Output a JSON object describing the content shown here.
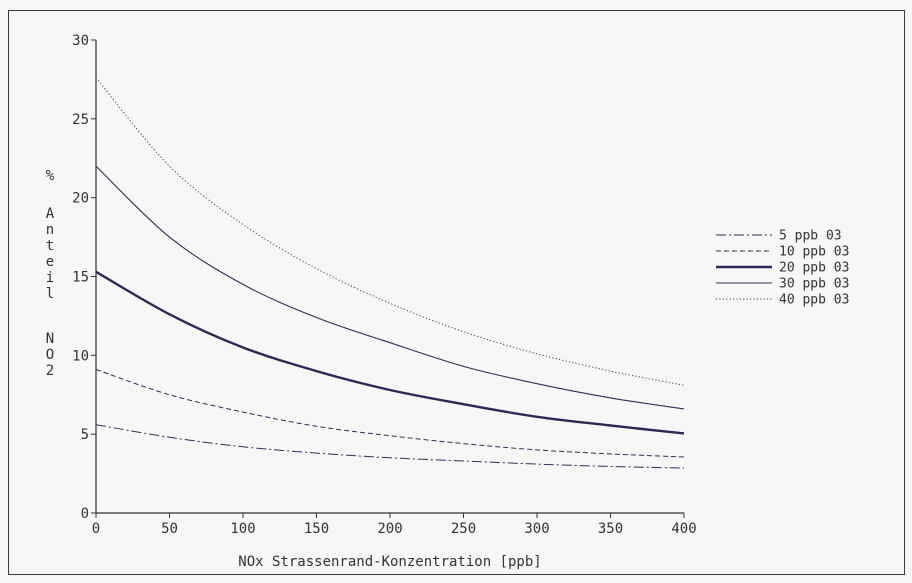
{
  "chart_data": {
    "type": "line",
    "xlabel": "NOx Strassenrand-Konzentration [ppb]",
    "ylabel": "% Anteil NO2",
    "xlim": [
      0,
      400
    ],
    "ylim": [
      0,
      30
    ],
    "xticks": [
      0,
      50,
      100,
      150,
      200,
      250,
      300,
      350,
      400
    ],
    "yticks": [
      0,
      5,
      10,
      15,
      20,
      25,
      30
    ],
    "grid": false,
    "legend_position": "right",
    "x": [
      0,
      50,
      100,
      150,
      200,
      250,
      300,
      350,
      400
    ],
    "series": [
      {
        "name": "5 ppb 03",
        "style": "dashdot",
        "color": "#2f2f55",
        "values": [
          5.6,
          4.8,
          4.2,
          3.8,
          3.5,
          3.3,
          3.1,
          2.95,
          2.85
        ]
      },
      {
        "name": "10 ppb 03",
        "style": "dashed",
        "color": "#2f2f55",
        "values": [
          9.1,
          7.5,
          6.4,
          5.5,
          4.9,
          4.4,
          4.0,
          3.75,
          3.55
        ]
      },
      {
        "name": "20 ppb 03",
        "style": "thick",
        "color": "#2a2a55",
        "values": [
          15.3,
          12.6,
          10.5,
          9.0,
          7.8,
          6.9,
          6.1,
          5.55,
          5.05
        ]
      },
      {
        "name": "30 ppb 03",
        "style": "solid",
        "color": "#2f2f55",
        "values": [
          22.0,
          17.5,
          14.5,
          12.4,
          10.8,
          9.3,
          8.2,
          7.3,
          6.6
        ]
      },
      {
        "name": "40 ppb 03",
        "style": "dotted",
        "color": "#3a3a60",
        "values": [
          27.6,
          22.0,
          18.3,
          15.5,
          13.3,
          11.5,
          10.1,
          9.0,
          8.1
        ]
      }
    ],
    "ylabel_letters": [
      "%",
      "A",
      "n",
      "t",
      "e",
      "i",
      "l",
      "N",
      "O",
      "2"
    ]
  }
}
